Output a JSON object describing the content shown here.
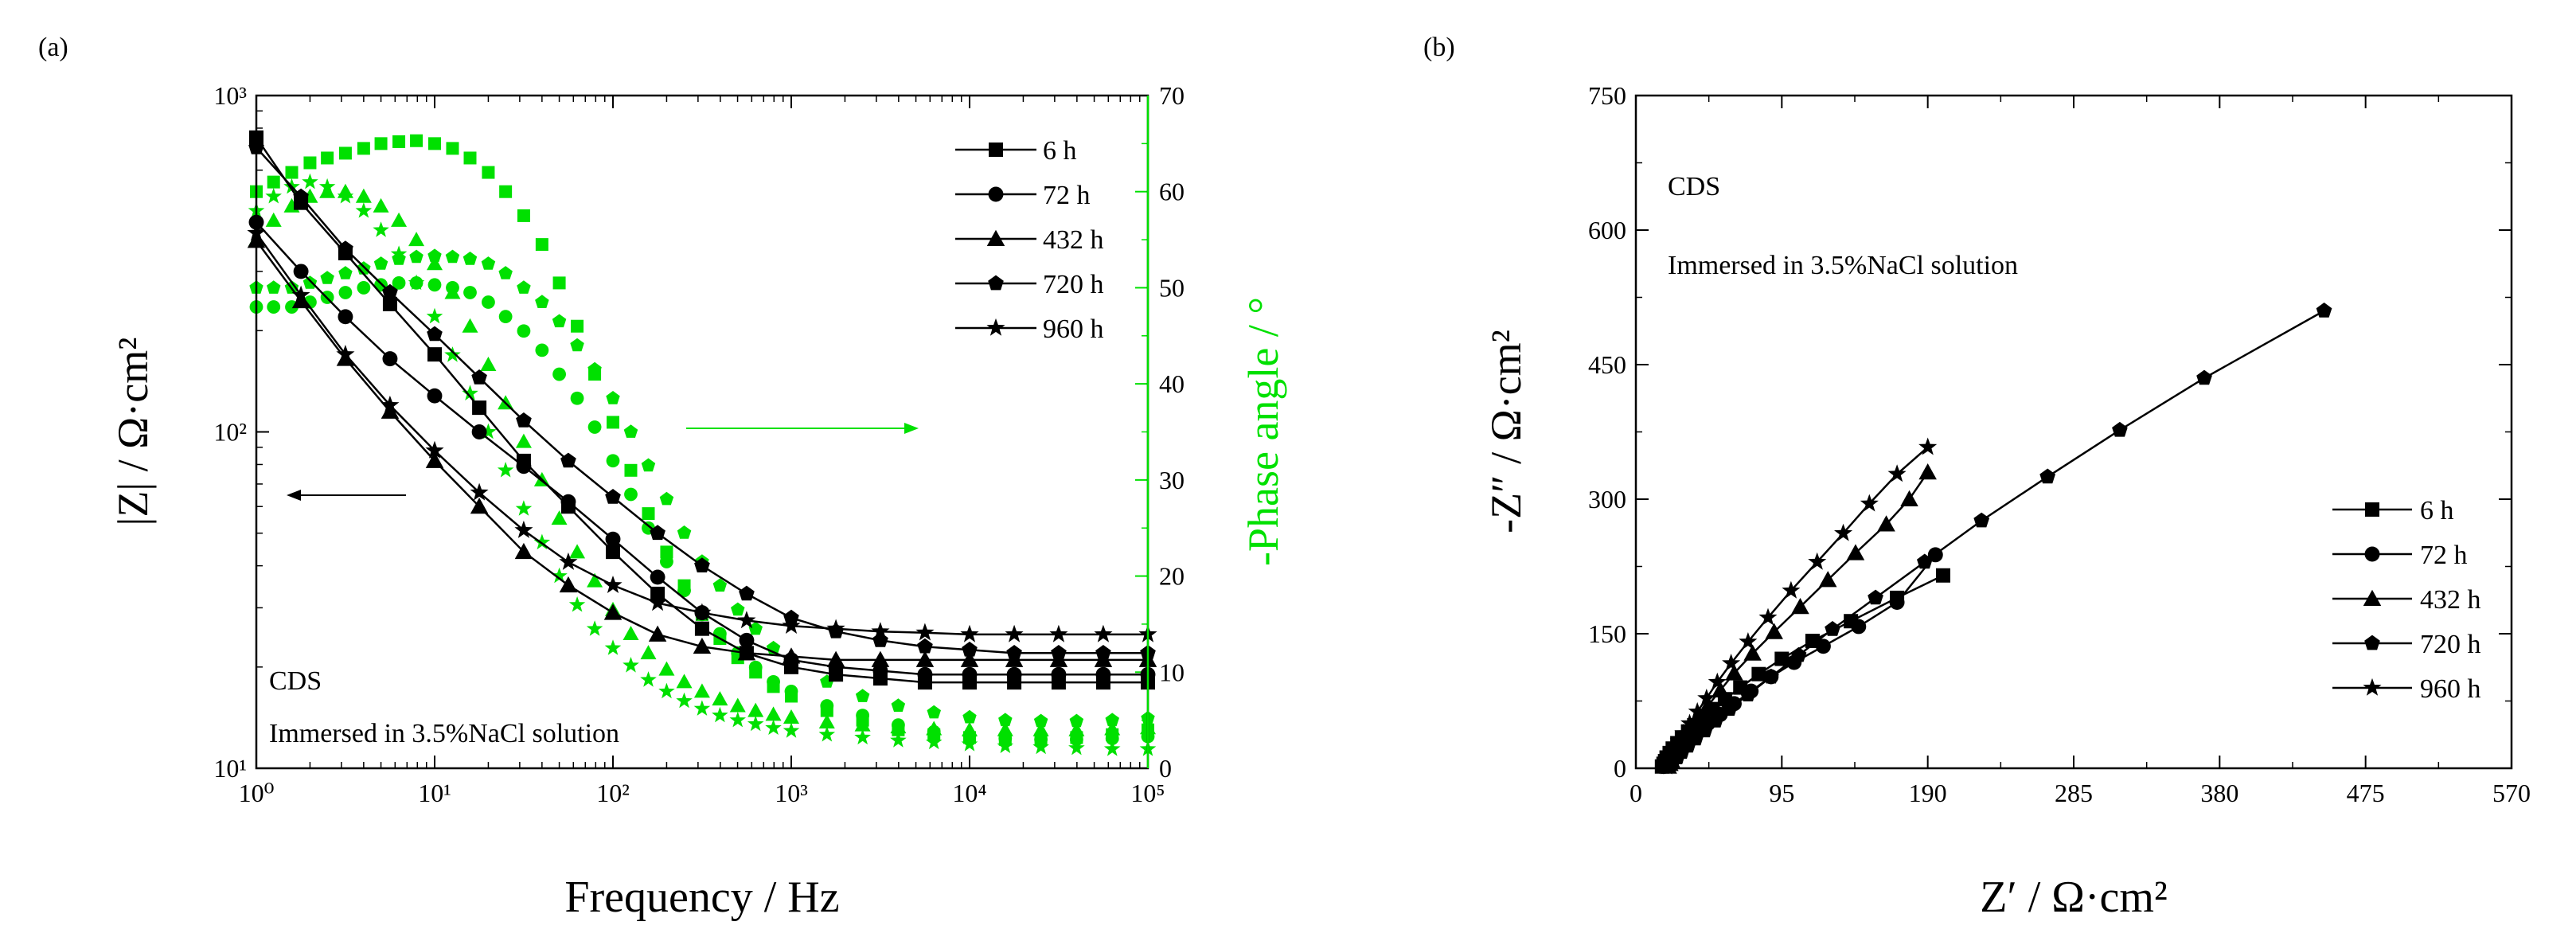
{
  "panel_labels": {
    "a": "(a)",
    "b": "(b)"
  },
  "colors": {
    "modulus": "#000000",
    "phase": "#00e000",
    "axis": "#000000"
  },
  "panel_a": {
    "annotation_1": "CDS",
    "annotation_2": "Immersed in 3.5%NaCl solution",
    "xlabel": "Frequency / Hz",
    "ylabel_left": "|Z| / Ω·cm²",
    "ylabel_right": "-Phase angle / °",
    "xticks": [
      "10⁰",
      "10¹",
      "10²",
      "10³",
      "10⁴",
      "10⁵"
    ],
    "yticks_left": [
      "10¹",
      "10²",
      "10³"
    ],
    "yticks_right": [
      "0",
      "10",
      "20",
      "30",
      "40",
      "50",
      "60",
      "70"
    ],
    "legend": [
      "6 h",
      "72 h",
      "432 h",
      "720 h",
      "960 h"
    ]
  },
  "panel_b": {
    "annotation_1": "CDS",
    "annotation_2": "Immersed in 3.5%NaCl solution",
    "xlabel": "Z′ / Ω·cm²",
    "ylabel": "-Z″ / Ω·cm²",
    "xticks": [
      "0",
      "95",
      "190",
      "285",
      "380",
      "475",
      "570"
    ],
    "yticks": [
      "0",
      "150",
      "300",
      "450",
      "600",
      "750"
    ],
    "legend": [
      "6 h",
      "72 h",
      "432 h",
      "720 h",
      "960 h"
    ]
  },
  "chart_data": [
    {
      "type": "line",
      "title": "",
      "xlabel": "Frequency / Hz",
      "ylabel": "|Z| / Ω·cm²",
      "y2label": "-Phase angle / °",
      "x_scale": "log",
      "y_scale": "log",
      "xlim": [
        1,
        100000
      ],
      "ylim": [
        10,
        1000
      ],
      "y2lim": [
        0,
        70
      ],
      "legend_position": "top-right",
      "markers": {
        "6 h": "square",
        "72 h": "circle",
        "432 h": "triangle",
        "720 h": "pentagon",
        "960 h": "star"
      },
      "modulus_series": [
        {
          "name": "6 h",
          "color": "#000000",
          "x": [
            1,
            1.78,
            3.16,
            5.62,
            10,
            17.8,
            31.6,
            56.2,
            100,
            178,
            316,
            562,
            1000,
            1780,
            3160,
            5620,
            10000,
            17800,
            31600,
            56200,
            100000
          ],
          "y": [
            750,
            480,
            340,
            240,
            170,
            118,
            82,
            60,
            44,
            33,
            26,
            22,
            20,
            19,
            18.5,
            18,
            18,
            18,
            18,
            18,
            18
          ]
        },
        {
          "name": "72 h",
          "color": "#000000",
          "x": [
            1,
            1.78,
            3.16,
            5.62,
            10,
            17.8,
            31.6,
            56.2,
            100,
            178,
            316,
            562,
            1000,
            1780,
            3160,
            5620,
            10000,
            17800,
            31600,
            56200,
            100000
          ],
          "y": [
            420,
            300,
            220,
            165,
            128,
            100,
            79,
            62,
            48,
            37,
            29,
            24,
            21,
            20,
            19.5,
            19,
            19,
            19,
            19,
            19,
            19
          ]
        },
        {
          "name": "432 h",
          "color": "#000000",
          "x": [
            1,
            1.78,
            3.16,
            5.62,
            10,
            17.8,
            31.6,
            56.2,
            100,
            178,
            316,
            562,
            1000,
            1780,
            3160,
            5620,
            10000,
            17800,
            31600,
            56200,
            100000
          ],
          "y": [
            370,
            245,
            165,
            115,
            82,
            60,
            44,
            35,
            29,
            25,
            23,
            22,
            21.5,
            21,
            21,
            21,
            21,
            21,
            21,
            21,
            21
          ]
        },
        {
          "name": "720 h",
          "color": "#000000",
          "x": [
            1,
            1.78,
            3.16,
            5.62,
            10,
            17.8,
            31.6,
            56.2,
            100,
            178,
            316,
            562,
            1000,
            1780,
            3160,
            5620,
            10000,
            17800,
            31600,
            56200,
            100000
          ],
          "y": [
            700,
            500,
            350,
            260,
            195,
            145,
            108,
            82,
            64,
            50,
            40,
            33,
            28,
            25.5,
            24,
            23,
            22.5,
            22,
            22,
            22,
            22
          ]
        },
        {
          "name": "960 h",
          "color": "#000000",
          "x": [
            1,
            1.78,
            3.16,
            5.62,
            10,
            17.8,
            31.6,
            56.2,
            100,
            178,
            316,
            562,
            1000,
            1780,
            3160,
            5620,
            10000,
            17800,
            31600,
            56200,
            100000
          ],
          "y": [
            390,
            255,
            170,
            120,
            88,
            66,
            51,
            41,
            35,
            31,
            29,
            27.5,
            26.5,
            26,
            25.5,
            25.3,
            25,
            25,
            25,
            25,
            25
          ]
        }
      ],
      "phase_series": [
        {
          "name": "6 h",
          "color": "#00e000",
          "x": [
            1,
            1.25,
            1.58,
            2,
            2.5,
            3.16,
            4,
            5,
            6.3,
            7.9,
            10,
            12.6,
            15.8,
            20,
            25,
            31.6,
            40,
            50,
            63,
            79,
            100,
            126,
            158,
            200,
            251,
            316,
            398,
            501,
            631,
            794,
            1000,
            1585,
            2512,
            3981,
            6310,
            10000,
            15850,
            25120,
            39810,
            63100,
            100000
          ],
          "y": [
            60,
            61,
            62,
            63,
            63.5,
            64,
            64.5,
            65,
            65.2,
            65.3,
            65,
            64.5,
            63.5,
            62,
            60,
            57.5,
            54.5,
            50.5,
            46,
            41,
            36,
            31,
            26.5,
            22.5,
            19,
            16,
            13.5,
            11.5,
            10,
            8.5,
            7.5,
            6,
            5,
            4,
            3.5,
            3.2,
            3,
            3,
            3.2,
            3.5,
            4
          ]
        },
        {
          "name": "72 h",
          "color": "#00e000",
          "x": [
            1,
            1.25,
            1.58,
            2,
            2.5,
            3.16,
            4,
            5,
            6.3,
            7.9,
            10,
            12.6,
            15.8,
            20,
            25,
            31.6,
            40,
            50,
            63,
            79,
            100,
            126,
            158,
            200,
            251,
            316,
            398,
            501,
            631,
            794,
            1000,
            1585,
            2512,
            3981,
            6310,
            10000,
            15850,
            25120,
            39810,
            63100,
            100000
          ],
          "y": [
            48,
            48,
            48,
            48.5,
            49,
            49.5,
            50,
            50.3,
            50.5,
            50.5,
            50.3,
            50,
            49.5,
            48.5,
            47,
            45.5,
            43.5,
            41,
            38.5,
            35.5,
            32,
            28.5,
            25,
            21.5,
            18.5,
            16,
            14,
            12,
            10.5,
            9,
            8,
            6.5,
            5.5,
            4.5,
            3.8,
            3.4,
            3.1,
            3,
            3,
            3.1,
            3.3
          ]
        },
        {
          "name": "432 h",
          "color": "#00e000",
          "x": [
            1,
            1.25,
            1.58,
            2,
            2.5,
            3.16,
            4,
            5,
            6.3,
            7.9,
            10,
            12.6,
            15.8,
            20,
            25,
            31.6,
            40,
            50,
            63,
            79,
            100,
            126,
            158,
            200,
            251,
            316,
            398,
            501,
            631,
            794,
            1000,
            1585,
            2512,
            3981,
            6310,
            10000,
            15850,
            25120,
            39810,
            63100,
            100000
          ],
          "y": [
            55,
            57,
            58.5,
            59.5,
            60,
            60,
            59.5,
            58.5,
            57,
            55,
            52.5,
            49.5,
            46,
            42,
            38,
            34,
            30,
            26,
            22.5,
            19.5,
            16.5,
            14,
            12,
            10.3,
            9,
            8,
            7.2,
            6.5,
            6,
            5.6,
            5.3,
            4.8,
            4.5,
            4.3,
            4.1,
            4,
            4,
            4,
            4,
            4.1,
            4.2
          ]
        },
        {
          "name": "720 h",
          "color": "#00e000",
          "x": [
            1,
            1.25,
            1.58,
            2,
            2.5,
            3.16,
            4,
            5,
            6.3,
            7.9,
            10,
            12.6,
            15.8,
            20,
            25,
            31.6,
            40,
            50,
            63,
            79,
            100,
            126,
            158,
            200,
            251,
            316,
            398,
            501,
            631,
            794,
            1000,
            1585,
            2512,
            3981,
            6310,
            10000,
            15850,
            25120,
            39810,
            63100,
            100000
          ],
          "y": [
            50,
            50,
            50,
            50.5,
            51,
            51.5,
            52,
            52.5,
            53,
            53.2,
            53.3,
            53.2,
            53,
            52.5,
            51.5,
            50,
            48.5,
            46.5,
            44,
            41.5,
            38.5,
            35,
            31.5,
            28,
            24.5,
            21.5,
            19,
            16.5,
            14.5,
            12.5,
            11,
            9,
            7.5,
            6.5,
            5.8,
            5.3,
            5,
            4.9,
            4.9,
            5,
            5.2
          ]
        },
        {
          "name": "960 h",
          "color": "#00e000",
          "x": [
            1,
            1.25,
            1.58,
            2,
            2.5,
            3.16,
            4,
            5,
            6.3,
            7.9,
            10,
            12.6,
            15.8,
            20,
            25,
            31.6,
            40,
            50,
            63,
            79,
            100,
            126,
            158,
            200,
            251,
            316,
            398,
            501,
            631,
            794,
            1000,
            1585,
            2512,
            3981,
            6310,
            10000,
            15850,
            25120,
            39810,
            63100,
            100000
          ],
          "y": [
            58,
            59.5,
            60.5,
            61,
            60.5,
            59.5,
            58,
            56,
            53.5,
            50.5,
            47,
            43,
            39,
            35,
            31,
            27,
            23.5,
            20,
            17,
            14.5,
            12.5,
            10.7,
            9.2,
            8,
            7,
            6.2,
            5.5,
            5,
            4.6,
            4.2,
            3.9,
            3.5,
            3.2,
            2.9,
            2.7,
            2.5,
            2.3,
            2.2,
            2.1,
            2,
            2
          ]
        }
      ]
    },
    {
      "type": "line",
      "title": "",
      "xlabel": "Z′ / Ω·cm²",
      "ylabel": "-Z″ / Ω·cm²",
      "xlim": [
        0,
        570
      ],
      "ylim": [
        0,
        750
      ],
      "legend_position": "bottom-right",
      "series": [
        {
          "name": "6 h",
          "marker": "square",
          "x": [
            17,
            18,
            19,
            20,
            22,
            24,
            27,
            30,
            34,
            38,
            44,
            50,
            58,
            68,
            80,
            95,
            115,
            140,
            170,
            200
          ],
          "y": [
            2,
            5,
            8,
            12,
            17,
            22,
            28,
            34,
            41,
            48,
            57,
            66,
            77,
            90,
            105,
            122,
            142,
            164,
            190,
            215
          ]
        },
        {
          "name": "72 h",
          "marker": "circle",
          "x": [
            18,
            19,
            20,
            22,
            24,
            26,
            29,
            32,
            36,
            41,
            47,
            55,
            64,
            75,
            88,
            103,
            122,
            145,
            170,
            195
          ],
          "y": [
            2,
            4,
            7,
            10,
            14,
            18,
            23,
            29,
            35,
            42,
            50,
            60,
            72,
            86,
            102,
            118,
            136,
            158,
            185,
            238
          ]
        },
        {
          "name": "432 h",
          "marker": "triangle",
          "x": [
            21,
            22,
            23,
            25,
            27,
            29,
            32,
            36,
            41,
            47,
            55,
            64,
            76,
            90,
            107,
            125,
            143,
            163,
            178,
            190
          ],
          "y": [
            2,
            5,
            9,
            14,
            20,
            27,
            35,
            45,
            57,
            70,
            87,
            106,
            128,
            152,
            180,
            210,
            240,
            272,
            300,
            330
          ]
        },
        {
          "name": "720 h",
          "marker": "pentagon",
          "x": [
            22,
            24,
            27,
            30,
            34,
            39,
            45,
            52,
            61,
            73,
            88,
            106,
            128,
            156,
            188,
            225,
            268,
            315,
            370,
            448
          ],
          "y": [
            3,
            7,
            12,
            18,
            25,
            33,
            42,
            53,
            66,
            82,
            102,
            126,
            155,
            190,
            230,
            276,
            325,
            377,
            435,
            510
          ]
        },
        {
          "name": "960 h",
          "marker": "star",
          "x": [
            20,
            21,
            22,
            24,
            26,
            28,
            31,
            35,
            40,
            46,
            53,
            62,
            73,
            86,
            101,
            118,
            135,
            152,
            170,
            190
          ],
          "y": [
            2,
            5,
            10,
            16,
            23,
            30,
            39,
            50,
            63,
            78,
            96,
            117,
            141,
            168,
            198,
            230,
            262,
            295,
            328,
            358
          ]
        }
      ]
    }
  ]
}
